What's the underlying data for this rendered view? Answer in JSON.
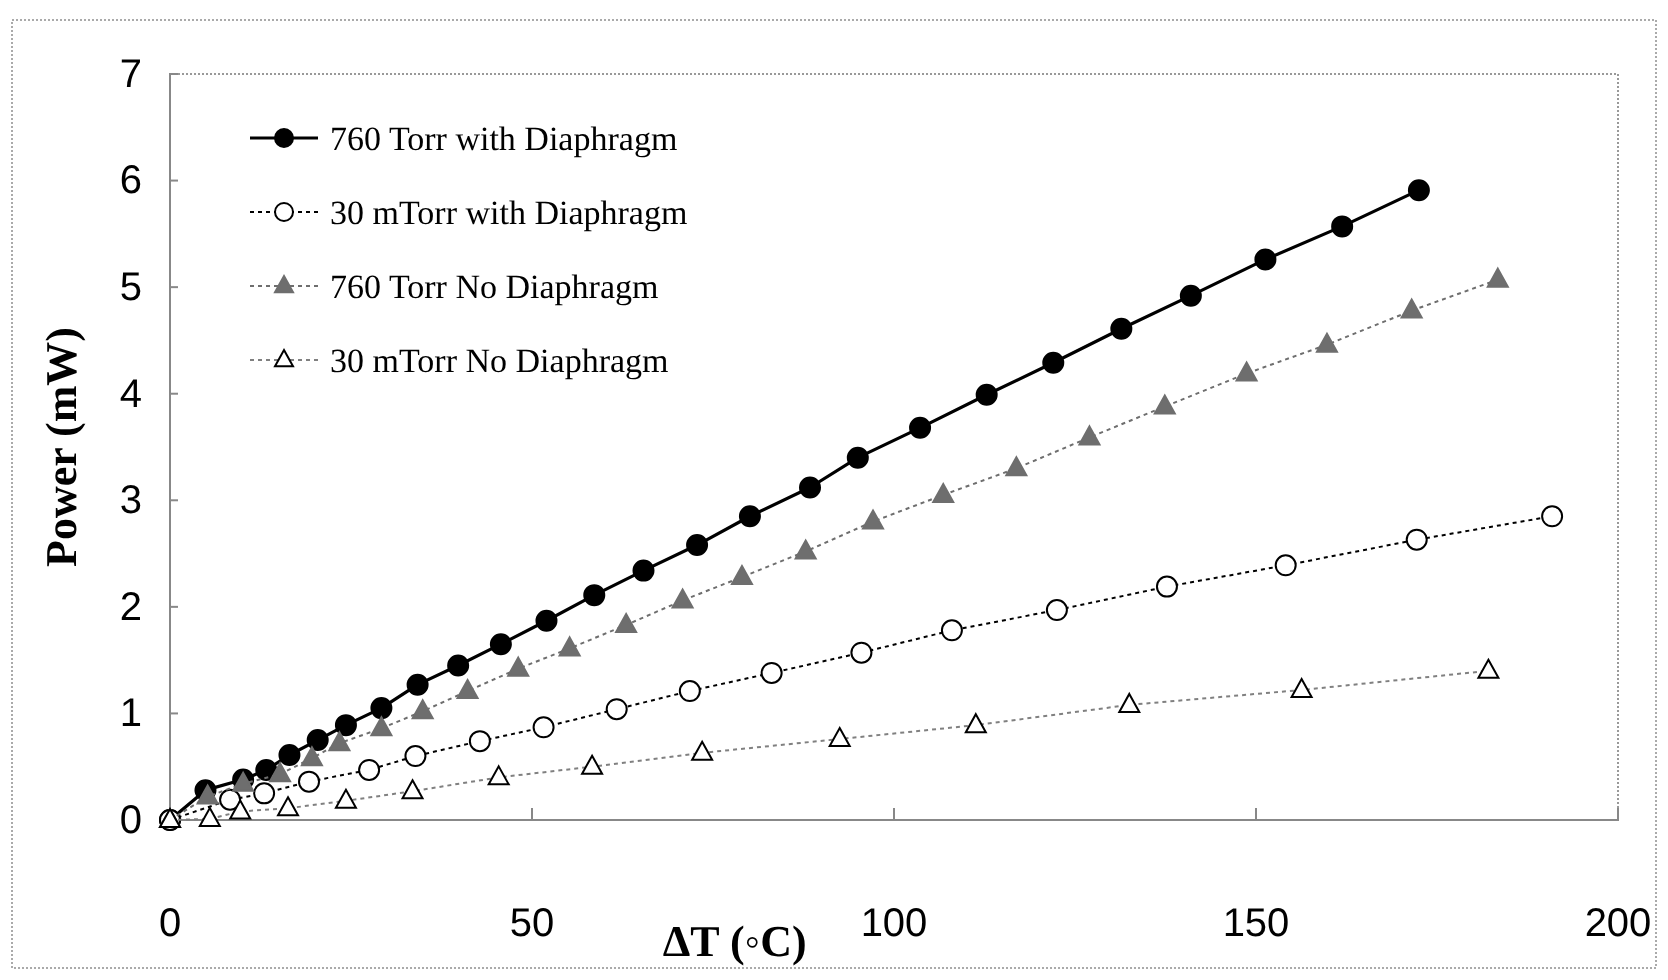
{
  "chart_data": {
    "type": "line",
    "xlabel": "ΔT (◦C)",
    "ylabel": "Power (mW)",
    "xlim": [
      0,
      200
    ],
    "xticks": [
      0,
      50,
      100,
      150,
      200
    ],
    "ylim": [
      0,
      7
    ],
    "yticks": [
      0,
      1,
      2,
      3,
      4,
      5,
      6,
      7
    ],
    "grid": false,
    "legend": "top left",
    "series": [
      {
        "name": "760 Torr with Diaphragm",
        "color": "#000000",
        "marker": "circle",
        "line_style": "solid",
        "x": [
          0,
          4.9,
          10.1,
          13.3,
          16.5,
          20.4,
          24.3,
          29.2,
          34.2,
          39.8,
          45.7,
          52,
          58.6,
          65.4,
          72.8,
          80.1,
          88.4,
          95,
          103.6,
          112.8,
          122,
          131.4,
          141,
          151.3,
          161.9,
          172.5
        ],
        "values": [
          0,
          0.28,
          0.38,
          0.47,
          0.61,
          0.75,
          0.89,
          1.05,
          1.27,
          1.45,
          1.65,
          1.87,
          2.11,
          2.34,
          2.58,
          2.85,
          3.12,
          3.4,
          3.68,
          3.99,
          4.29,
          4.61,
          4.92,
          5.26,
          5.57,
          5.91
        ]
      },
      {
        "name": "30 mTorr with Diaphragm",
        "color": "#000000",
        "marker": "circle-open",
        "line_style": "dotted",
        "x": [
          0,
          8.3,
          13,
          19.2,
          27.5,
          33.9,
          42.8,
          51.6,
          61.7,
          71.8,
          83.1,
          95.5,
          108,
          122.5,
          137.7,
          154.1,
          172.2,
          190.9
        ],
        "values": [
          0,
          0.19,
          0.25,
          0.36,
          0.47,
          0.6,
          0.74,
          0.87,
          1.04,
          1.21,
          1.38,
          1.57,
          1.78,
          1.97,
          2.19,
          2.39,
          2.63,
          2.85
        ]
      },
      {
        "name": "760 Torr No Diaphragm",
        "color": "#6e6e6e",
        "marker": "triangle",
        "line_style": "dotted",
        "x": [
          0,
          5.2,
          10.1,
          15.2,
          19.6,
          23.4,
          29.2,
          34.9,
          41.1,
          48.1,
          55.2,
          63,
          70.8,
          79,
          87.8,
          97.1,
          106.8,
          116.9,
          127,
          137.4,
          148.7,
          159.8,
          171.5,
          183.4
        ],
        "values": [
          0,
          0.22,
          0.34,
          0.43,
          0.58,
          0.72,
          0.86,
          1.02,
          1.21,
          1.42,
          1.61,
          1.83,
          2.06,
          2.28,
          2.52,
          2.8,
          3.05,
          3.3,
          3.59,
          3.88,
          4.19,
          4.46,
          4.78,
          5.07
        ]
      },
      {
        "name": "30 mTorr No Diaphragm",
        "color": "#808080",
        "marker": "triangle-open",
        "line_style": "dotted",
        "x": [
          0,
          5.5,
          9.7,
          16.3,
          24.3,
          33.5,
          45.4,
          58.3,
          73.5,
          92.5,
          111.3,
          132.5,
          156.3,
          182.1
        ],
        "values": [
          0,
          0.01,
          0.08,
          0.11,
          0.18,
          0.27,
          0.4,
          0.5,
          0.63,
          0.76,
          0.89,
          1.08,
          1.22,
          1.4
        ]
      }
    ]
  }
}
